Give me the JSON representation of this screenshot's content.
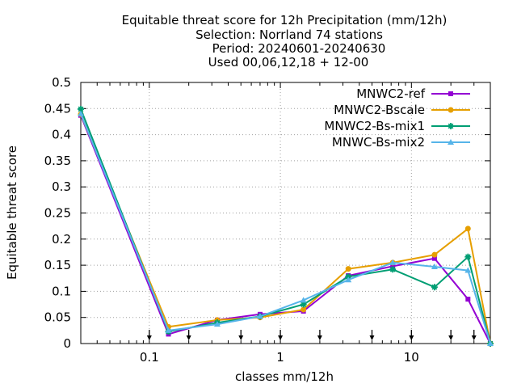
{
  "chart_data": {
    "type": "line",
    "title_lines": [
      "Equitable threat score  for 12h Precipitation (mm/12h)",
      "Selection: Norrland     74 stations",
      "Period: 20240601-20240630",
      "Used 00,06,12,18 + 12-00"
    ],
    "xlabel": "classes mm/12h",
    "ylabel": "Equitable threat score",
    "x_scale": "log",
    "xlim": [
      0.03,
      40
    ],
    "ylim": [
      0,
      0.5
    ],
    "x_ticks": [
      0.1,
      1,
      10
    ],
    "x_tick_labels": [
      "0.1",
      "1",
      "10"
    ],
    "y_ticks": [
      0,
      0.05,
      0.1,
      0.15,
      0.2,
      0.25,
      0.3,
      0.35,
      0.4,
      0.45,
      0.5
    ],
    "y_tick_labels": [
      "0",
      "0.05",
      "0.1",
      "0.15",
      "0.2",
      "0.25",
      "0.3",
      "0.35",
      "0.4",
      "0.45",
      "0.5"
    ],
    "grid": true,
    "legend_position": "top-right",
    "threshold_markers": [
      0.1,
      0.2,
      0.5,
      1,
      2,
      5,
      10,
      20,
      30
    ],
    "x": [
      0.03,
      0.14,
      0.33,
      0.7,
      1.5,
      3.3,
      7.2,
      15,
      27,
      40
    ],
    "series": [
      {
        "name": "MNWC2-ref",
        "color": "#9400d3",
        "marker": "square",
        "values": [
          0.437,
          0.018,
          0.045,
          0.056,
          0.062,
          0.13,
          0.148,
          0.163,
          0.085,
          0.0
        ]
      },
      {
        "name": "MNWC2-Bscale",
        "color": "#e69f00",
        "marker": "circle",
        "values": [
          0.439,
          0.032,
          0.045,
          0.05,
          0.065,
          0.143,
          0.155,
          0.17,
          0.22,
          0.0
        ]
      },
      {
        "name": "MNWC2-Bs-mix1",
        "color": "#009e73",
        "marker": "star",
        "values": [
          0.449,
          0.023,
          0.04,
          0.052,
          0.075,
          0.128,
          0.142,
          0.108,
          0.166,
          0.0
        ]
      },
      {
        "name": "MNWC-Bs-mix2",
        "color": "#56b4e9",
        "marker": "triangle",
        "values": [
          0.44,
          0.025,
          0.037,
          0.052,
          0.083,
          0.122,
          0.155,
          0.147,
          0.14,
          0.0
        ]
      }
    ]
  }
}
